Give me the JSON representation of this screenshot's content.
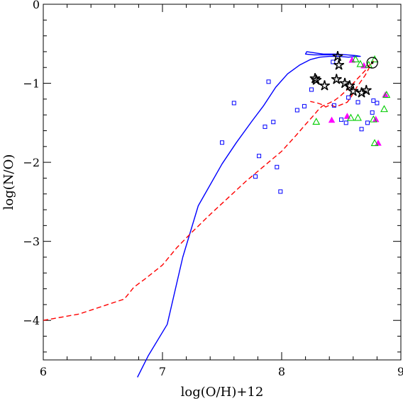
{
  "chart_data": {
    "type": "scatter",
    "title": "",
    "xlabel": "log(O/H)+12",
    "ylabel": "log(N/O)",
    "xlim": [
      6,
      9
    ],
    "ylim": [
      -4.5,
      0
    ],
    "xticks": [
      "6",
      "7",
      "8",
      "9"
    ],
    "yticks": [
      "0",
      "−1",
      "−2",
      "−3",
      "−4"
    ],
    "grid": false,
    "colors": {
      "blue_model": "#0000ff",
      "red_model": "#ff0000",
      "open_squares": "#0000ff",
      "magenta_triangles": "#ff00ff",
      "green_triangles": "#00cc00",
      "stars": "#000000",
      "sun_symbol": "#000000"
    },
    "series": [
      {
        "kind": "line-solid",
        "color": "#0000ff",
        "points": [
          [
            6.79,
            -4.72
          ],
          [
            6.88,
            -4.45
          ],
          [
            7.04,
            -4.05
          ],
          [
            7.17,
            -3.2
          ],
          [
            7.3,
            -2.55
          ],
          [
            7.5,
            -2.02
          ],
          [
            7.62,
            -1.75
          ],
          [
            7.75,
            -1.48
          ],
          [
            7.85,
            -1.28
          ],
          [
            7.95,
            -1.05
          ],
          [
            8.05,
            -0.88
          ],
          [
            8.15,
            -0.77
          ],
          [
            8.24,
            -0.7
          ],
          [
            8.32,
            -0.67
          ],
          [
            8.4,
            -0.66
          ],
          [
            8.48,
            -0.66
          ],
          [
            8.56,
            -0.67
          ],
          [
            8.63,
            -0.66
          ],
          [
            8.66,
            -0.66
          ],
          [
            8.62,
            -0.65
          ],
          [
            8.55,
            -0.64
          ],
          [
            8.45,
            -0.63
          ],
          [
            8.35,
            -0.63
          ],
          [
            8.3,
            -0.62
          ],
          [
            8.21,
            -0.6
          ],
          [
            8.2,
            -0.63
          ],
          [
            8.27,
            -0.64
          ],
          [
            8.37,
            -0.64
          ],
          [
            8.47,
            -0.64
          ]
        ]
      },
      {
        "kind": "line-dashed",
        "color": "#ff0000",
        "points": [
          [
            6,
            -4.0
          ],
          [
            6.3,
            -3.92
          ],
          [
            6.5,
            -3.82
          ],
          [
            6.68,
            -3.73
          ],
          [
            6.76,
            -3.58
          ],
          [
            6.85,
            -3.48
          ],
          [
            7.0,
            -3.3
          ],
          [
            7.12,
            -3.08
          ],
          [
            7.25,
            -2.88
          ],
          [
            7.4,
            -2.66
          ],
          [
            7.55,
            -2.45
          ],
          [
            7.7,
            -2.24
          ],
          [
            7.85,
            -2.05
          ],
          [
            8.0,
            -1.86
          ],
          [
            8.12,
            -1.66
          ],
          [
            8.2,
            -1.52
          ],
          [
            8.26,
            -1.42
          ],
          [
            8.31,
            -1.33
          ],
          [
            8.34,
            -1.29
          ],
          [
            8.4,
            -1.25
          ],
          [
            8.45,
            -1.21
          ],
          [
            8.5,
            -1.15
          ],
          [
            8.55,
            -1.08
          ],
          [
            8.6,
            -1.0
          ],
          [
            8.65,
            -0.92
          ],
          [
            8.7,
            -0.84
          ],
          [
            8.73,
            -0.78
          ],
          [
            8.77,
            -0.72
          ],
          [
            8.75,
            -0.76
          ],
          [
            8.7,
            -0.9
          ],
          [
            8.63,
            -1.05
          ],
          [
            8.58,
            -1.18
          ],
          [
            8.55,
            -1.24
          ],
          [
            8.5,
            -1.27
          ],
          [
            8.45,
            -1.3
          ],
          [
            8.41,
            -1.27
          ],
          [
            8.37,
            -1.3
          ],
          [
            8.34,
            -1.27
          ],
          [
            8.3,
            -1.25
          ],
          [
            8.24,
            -1.23
          ]
        ]
      },
      {
        "kind": "open-square",
        "color": "#0000ff",
        "points": [
          [
            7.5,
            -1.75
          ],
          [
            7.6,
            -1.25
          ],
          [
            7.78,
            -2.18
          ],
          [
            7.81,
            -1.92
          ],
          [
            7.86,
            -1.55
          ],
          [
            7.89,
            -0.98
          ],
          [
            7.93,
            -1.49
          ],
          [
            7.96,
            -2.06
          ],
          [
            7.99,
            -2.37
          ],
          [
            8.13,
            -1.34
          ],
          [
            8.19,
            -1.29
          ],
          [
            8.25,
            -1.08
          ],
          [
            8.43,
            -0.73
          ],
          [
            8.44,
            -1.28
          ],
          [
            8.5,
            -1.46
          ],
          [
            8.54,
            -1.5
          ],
          [
            8.56,
            -1.18
          ],
          [
            8.64,
            -1.24
          ],
          [
            8.67,
            -1.58
          ],
          [
            8.72,
            -1.5
          ],
          [
            8.76,
            -1.37
          ],
          [
            8.77,
            -1.22
          ],
          [
            8.8,
            -1.25
          ]
        ]
      },
      {
        "kind": "filled-triangle",
        "color": "#ff00ff",
        "points": [
          [
            8.42,
            -1.47
          ],
          [
            8.55,
            -1.42
          ],
          [
            8.59,
            -0.71
          ],
          [
            8.69,
            -0.78
          ],
          [
            8.79,
            -1.46
          ],
          [
            8.81,
            -1.76
          ],
          [
            8.87,
            -1.15
          ]
        ]
      },
      {
        "kind": "open-triangle",
        "color": "#00cc00",
        "points": [
          [
            8.29,
            -1.49
          ],
          [
            8.58,
            -1.44
          ],
          [
            8.62,
            -0.7
          ],
          [
            8.64,
            -1.44
          ],
          [
            8.66,
            -0.76
          ],
          [
            8.73,
            -0.77
          ],
          [
            8.77,
            -1.46
          ],
          [
            8.78,
            -1.76
          ],
          [
            8.78,
            -0.7
          ],
          [
            8.86,
            -1.33
          ],
          [
            8.88,
            -1.15
          ]
        ]
      },
      {
        "kind": "star",
        "color": "#000000",
        "points": [
          [
            8.28,
            -0.94
          ],
          [
            8.29,
            -0.96
          ],
          [
            8.36,
            -1.03
          ],
          [
            8.46,
            -0.95
          ],
          [
            8.47,
            -0.66
          ],
          [
            8.48,
            -0.77
          ],
          [
            8.53,
            -1.0
          ],
          [
            8.57,
            -1.03
          ],
          [
            8.6,
            -1.1
          ],
          [
            8.67,
            -1.12
          ],
          [
            8.71,
            -1.09
          ]
        ]
      },
      {
        "kind": "sun",
        "color": "#000000",
        "points": [
          [
            8.76,
            -0.74
          ]
        ]
      }
    ]
  }
}
